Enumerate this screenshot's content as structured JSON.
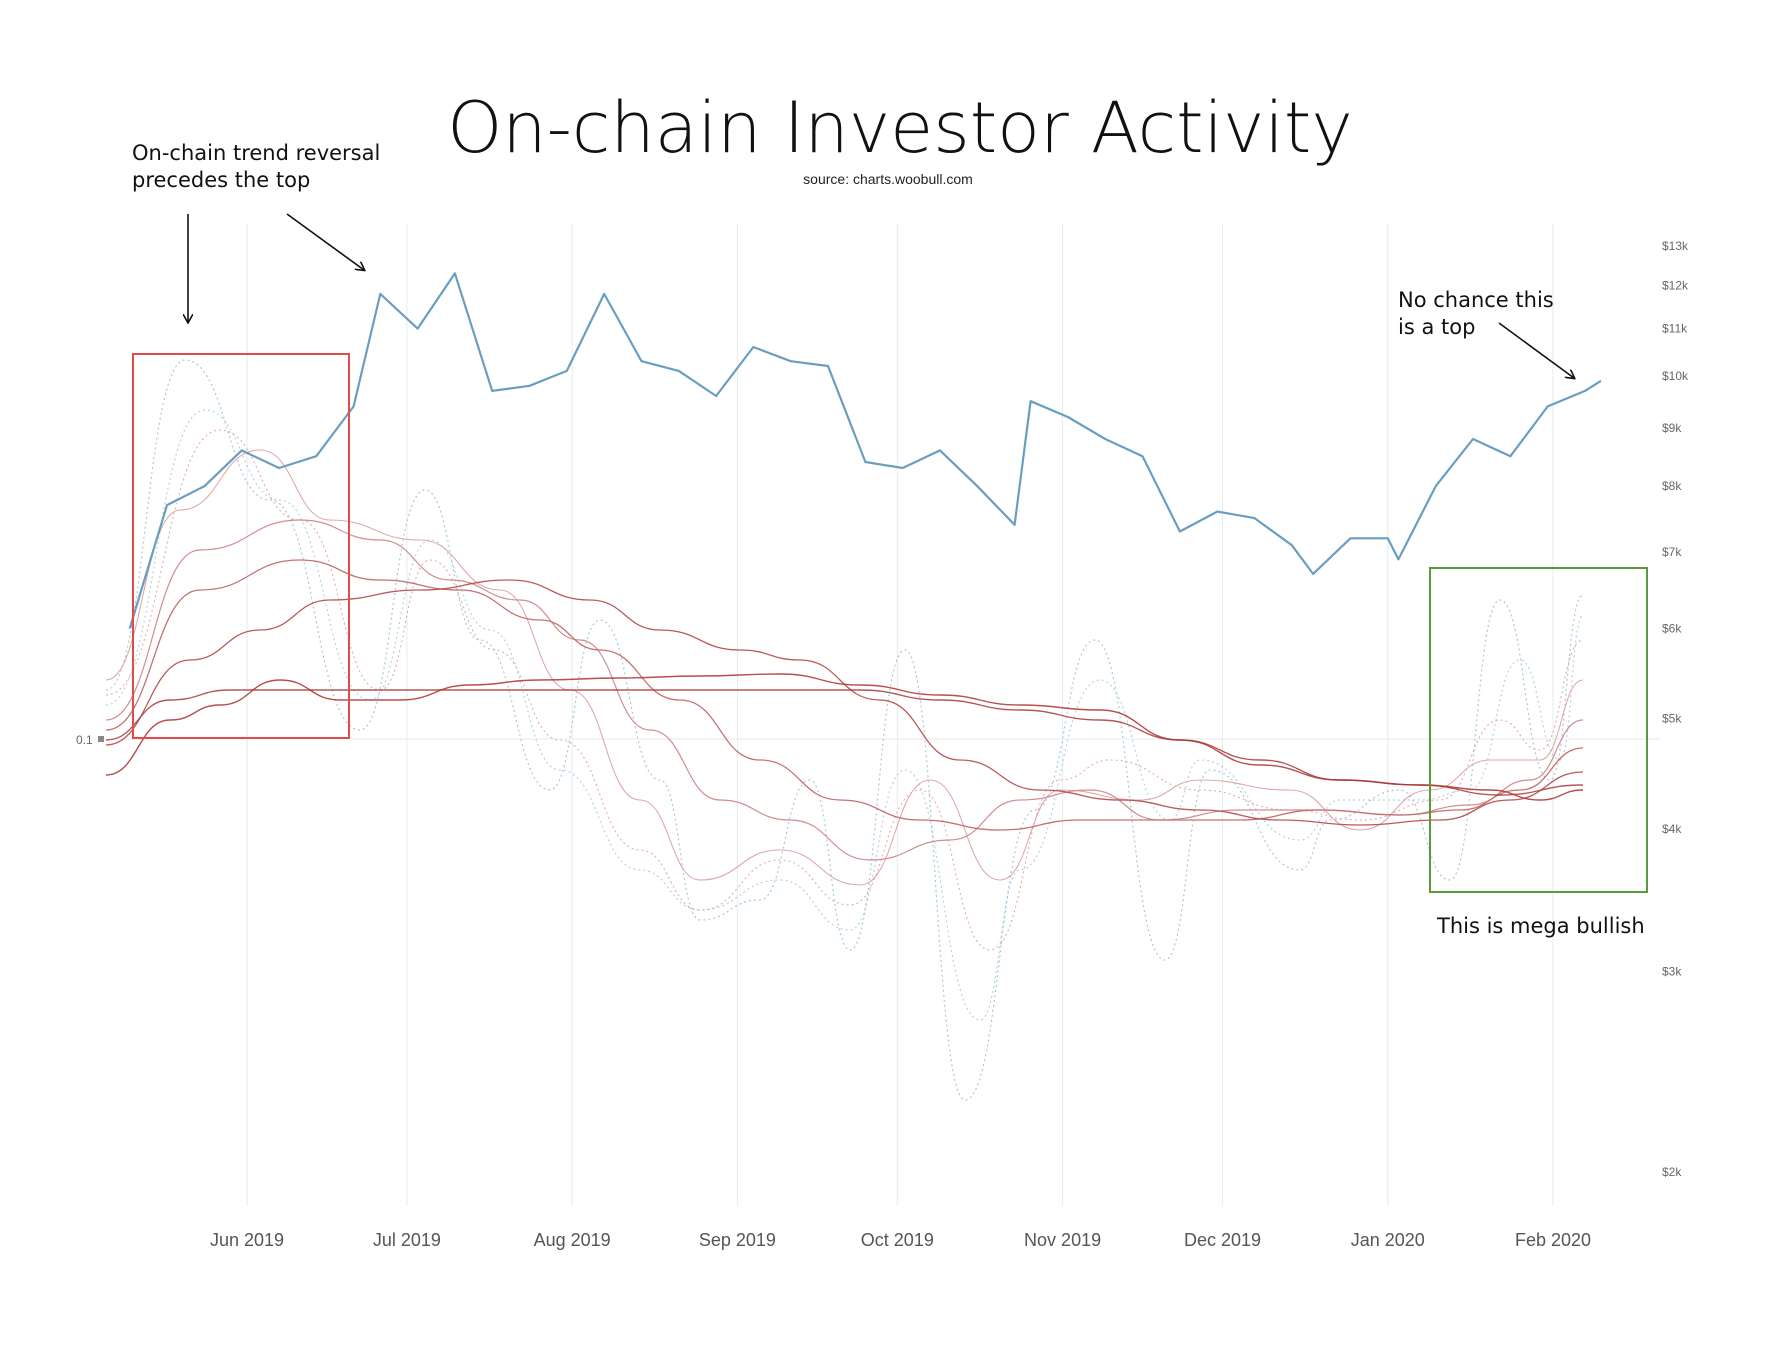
{
  "chart_data": {
    "type": "line",
    "title": "On-chain Investor Activity",
    "subtitle": "source: charts.woobull.com",
    "x_ticks": [
      "Jun 2019",
      "Jul 2019",
      "Aug 2019",
      "Sep 2019",
      "Oct 2019",
      "Nov 2019",
      "Dec 2019",
      "Jan 2020",
      "Feb 2020"
    ],
    "y_right_ticks": [
      "$13k",
      "$12k",
      "$11k",
      "$10k",
      "$9k",
      "$8k",
      "$7k",
      "$6k",
      "$5k",
      "$4k",
      "$3k",
      "$2k"
    ],
    "y_left_ticks": [
      "0.1"
    ],
    "price_scale": "log",
    "grid": true,
    "legend": "none",
    "price_series": {
      "dates": [
        "2019-05-10",
        "2019-05-17",
        "2019-05-24",
        "2019-05-31",
        "2019-06-07",
        "2019-06-14",
        "2019-06-21",
        "2019-06-26",
        "2019-07-03",
        "2019-07-10",
        "2019-07-17",
        "2019-07-24",
        "2019-07-31",
        "2019-08-07",
        "2019-08-14",
        "2019-08-21",
        "2019-08-28",
        "2019-09-04",
        "2019-09-11",
        "2019-09-18",
        "2019-09-25",
        "2019-10-02",
        "2019-10-09",
        "2019-10-16",
        "2019-10-23",
        "2019-10-26",
        "2019-11-02",
        "2019-11-09",
        "2019-11-16",
        "2019-11-23",
        "2019-11-30",
        "2019-12-07",
        "2019-12-14",
        "2019-12-18",
        "2019-12-25",
        "2020-01-01",
        "2020-01-03",
        "2020-01-10",
        "2020-01-17",
        "2020-01-24",
        "2020-01-31",
        "2020-02-07",
        "2020-02-10"
      ],
      "values": [
        6000,
        7700,
        8000,
        8600,
        8300,
        8500,
        9400,
        11800,
        11000,
        12300,
        9700,
        9800,
        10100,
        11800,
        10300,
        10100,
        9600,
        10600,
        10300,
        10200,
        8400,
        8300,
        8600,
        8000,
        7400,
        9500,
        9200,
        8800,
        8500,
        7300,
        7600,
        7500,
        7100,
        6700,
        7200,
        7200,
        6900,
        8000,
        8800,
        8500,
        9400,
        9700,
        9900
      ]
    },
    "color_price": "#6a9ec0",
    "color_short_ma": "#9cc3d6",
    "color_long_ma": "#b23a3a"
  },
  "annotations": {
    "left_line1": "On-chain trend reversal",
    "left_line2": "precedes the top",
    "right_line1": "No chance this",
    "right_line2": "is a top",
    "box_label": "This is mega bullish"
  },
  "colors": {
    "red_box": "#e34a4a",
    "green_box": "#5a9a3a"
  }
}
